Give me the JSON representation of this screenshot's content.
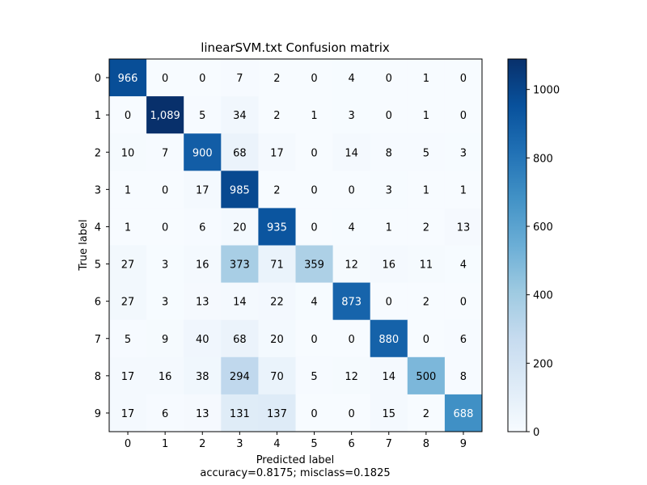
{
  "chart_data": {
    "type": "heatmap",
    "title": "linearSVM.txt Confusion matrix",
    "xlabel": "Predicted label",
    "ylabel": "True label",
    "footer": "accuracy=0.8175; misclass=0.1825",
    "x_ticks": [
      "0",
      "1",
      "2",
      "3",
      "4",
      "5",
      "6",
      "7",
      "8",
      "9"
    ],
    "y_ticks": [
      "0",
      "1",
      "2",
      "3",
      "4",
      "5",
      "6",
      "7",
      "8",
      "9"
    ],
    "matrix": [
      [
        966,
        0,
        0,
        7,
        2,
        0,
        4,
        0,
        1,
        0
      ],
      [
        0,
        1089,
        5,
        34,
        2,
        1,
        3,
        0,
        1,
        0
      ],
      [
        10,
        7,
        900,
        68,
        17,
        0,
        14,
        8,
        5,
        3
      ],
      [
        1,
        0,
        17,
        985,
        2,
        0,
        0,
        3,
        1,
        1
      ],
      [
        1,
        0,
        6,
        20,
        935,
        0,
        4,
        1,
        2,
        13
      ],
      [
        27,
        3,
        16,
        373,
        71,
        359,
        12,
        16,
        11,
        4
      ],
      [
        27,
        3,
        13,
        14,
        22,
        4,
        873,
        0,
        2,
        0
      ],
      [
        5,
        9,
        40,
        68,
        20,
        0,
        0,
        880,
        0,
        6
      ],
      [
        17,
        16,
        38,
        294,
        70,
        5,
        12,
        14,
        500,
        8
      ],
      [
        17,
        6,
        13,
        131,
        137,
        0,
        0,
        15,
        2,
        688
      ]
    ],
    "cell_labels": [
      [
        "966",
        "0",
        "0",
        "7",
        "2",
        "0",
        "4",
        "0",
        "1",
        "0"
      ],
      [
        "0",
        "1,089",
        "5",
        "34",
        "2",
        "1",
        "3",
        "0",
        "1",
        "0"
      ],
      [
        "10",
        "7",
        "900",
        "68",
        "17",
        "0",
        "14",
        "8",
        "5",
        "3"
      ],
      [
        "1",
        "0",
        "17",
        "985",
        "2",
        "0",
        "0",
        "3",
        "1",
        "1"
      ],
      [
        "1",
        "0",
        "6",
        "20",
        "935",
        "0",
        "4",
        "1",
        "2",
        "13"
      ],
      [
        "27",
        "3",
        "16",
        "373",
        "71",
        "359",
        "12",
        "16",
        "11",
        "4"
      ],
      [
        "27",
        "3",
        "13",
        "14",
        "22",
        "4",
        "873",
        "0",
        "2",
        "0"
      ],
      [
        "5",
        "9",
        "40",
        "68",
        "20",
        "0",
        "0",
        "880",
        "0",
        "6"
      ],
      [
        "17",
        "16",
        "38",
        "294",
        "70",
        "5",
        "12",
        "14",
        "500",
        "8"
      ],
      [
        "17",
        "6",
        "13",
        "131",
        "137",
        "0",
        "0",
        "15",
        "2",
        "688"
      ]
    ],
    "colormap": "Blues",
    "vmin": 0,
    "vmax": 1089,
    "colorbar_ticks": [
      0,
      200,
      400,
      600,
      800,
      1000
    ],
    "colorbar_tick_labels": [
      "0",
      "200",
      "400",
      "600",
      "800",
      "1000"
    ]
  }
}
